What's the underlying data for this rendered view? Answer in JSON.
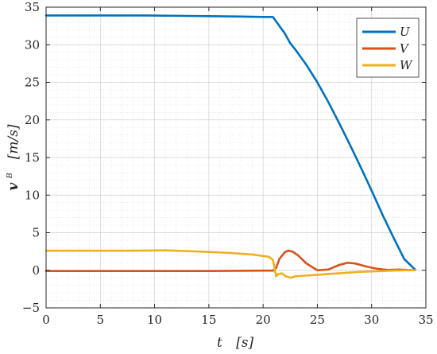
{
  "chart_data": {
    "type": "line",
    "xlabel_var": "t",
    "xlabel_unit": "[s]",
    "ylabel_var": "v",
    "ylabel_sup": "B",
    "ylabel_unit": "[m/s]",
    "xlim": [
      0,
      35
    ],
    "ylim": [
      -5,
      35
    ],
    "xticks": [
      0,
      5,
      10,
      15,
      20,
      25,
      30,
      35
    ],
    "yticks": [
      -5,
      0,
      5,
      10,
      15,
      20,
      25,
      30,
      35
    ],
    "grid": true,
    "minor_grid": true,
    "legend_position": "top-right",
    "series": [
      {
        "name": "U",
        "color": "#0072BD",
        "x": [
          0,
          5,
          9,
          12,
          15,
          18,
          20,
          20.9,
          21.5,
          22,
          22.5,
          23,
          24,
          25,
          26,
          27,
          28,
          29,
          30,
          31,
          32,
          33,
          34
        ],
        "y": [
          33.9,
          33.9,
          33.9,
          33.85,
          33.8,
          33.75,
          33.7,
          33.7,
          32.5,
          31.5,
          30.2,
          29.3,
          27.3,
          25.0,
          22.4,
          19.6,
          16.7,
          13.7,
          10.6,
          7.4,
          4.4,
          1.5,
          0.1
        ]
      },
      {
        "name": "V",
        "color": "#D95319",
        "x": [
          0,
          5,
          10,
          15,
          20,
          20.9,
          21.2,
          21.5,
          22,
          22.3,
          22.7,
          23.2,
          24,
          25,
          26,
          27,
          27.8,
          28.5,
          29.5,
          30.5,
          31.5,
          32.5,
          34
        ],
        "y": [
          -0.1,
          -0.1,
          -0.1,
          -0.1,
          -0.05,
          -0.05,
          0.3,
          1.5,
          2.4,
          2.6,
          2.5,
          2.0,
          0.9,
          0.0,
          0.1,
          0.7,
          1.0,
          0.9,
          0.5,
          0.2,
          0.05,
          0.1,
          0.0
        ]
      },
      {
        "name": "W",
        "color": "#EDB120",
        "x": [
          0,
          5,
          8,
          11,
          14,
          17,
          19,
          20.5,
          20.9,
          21.2,
          21.4,
          21.7,
          22.1,
          22.5,
          23,
          24,
          25,
          26,
          27,
          28,
          29,
          30,
          31,
          32,
          33,
          34
        ],
        "y": [
          2.6,
          2.6,
          2.6,
          2.65,
          2.5,
          2.3,
          2.1,
          1.8,
          1.4,
          -0.8,
          -0.5,
          -0.4,
          -0.8,
          -1.0,
          -0.8,
          -0.7,
          -0.6,
          -0.5,
          -0.4,
          -0.3,
          -0.2,
          -0.15,
          -0.1,
          -0.05,
          0.0,
          0.0
        ]
      }
    ]
  }
}
